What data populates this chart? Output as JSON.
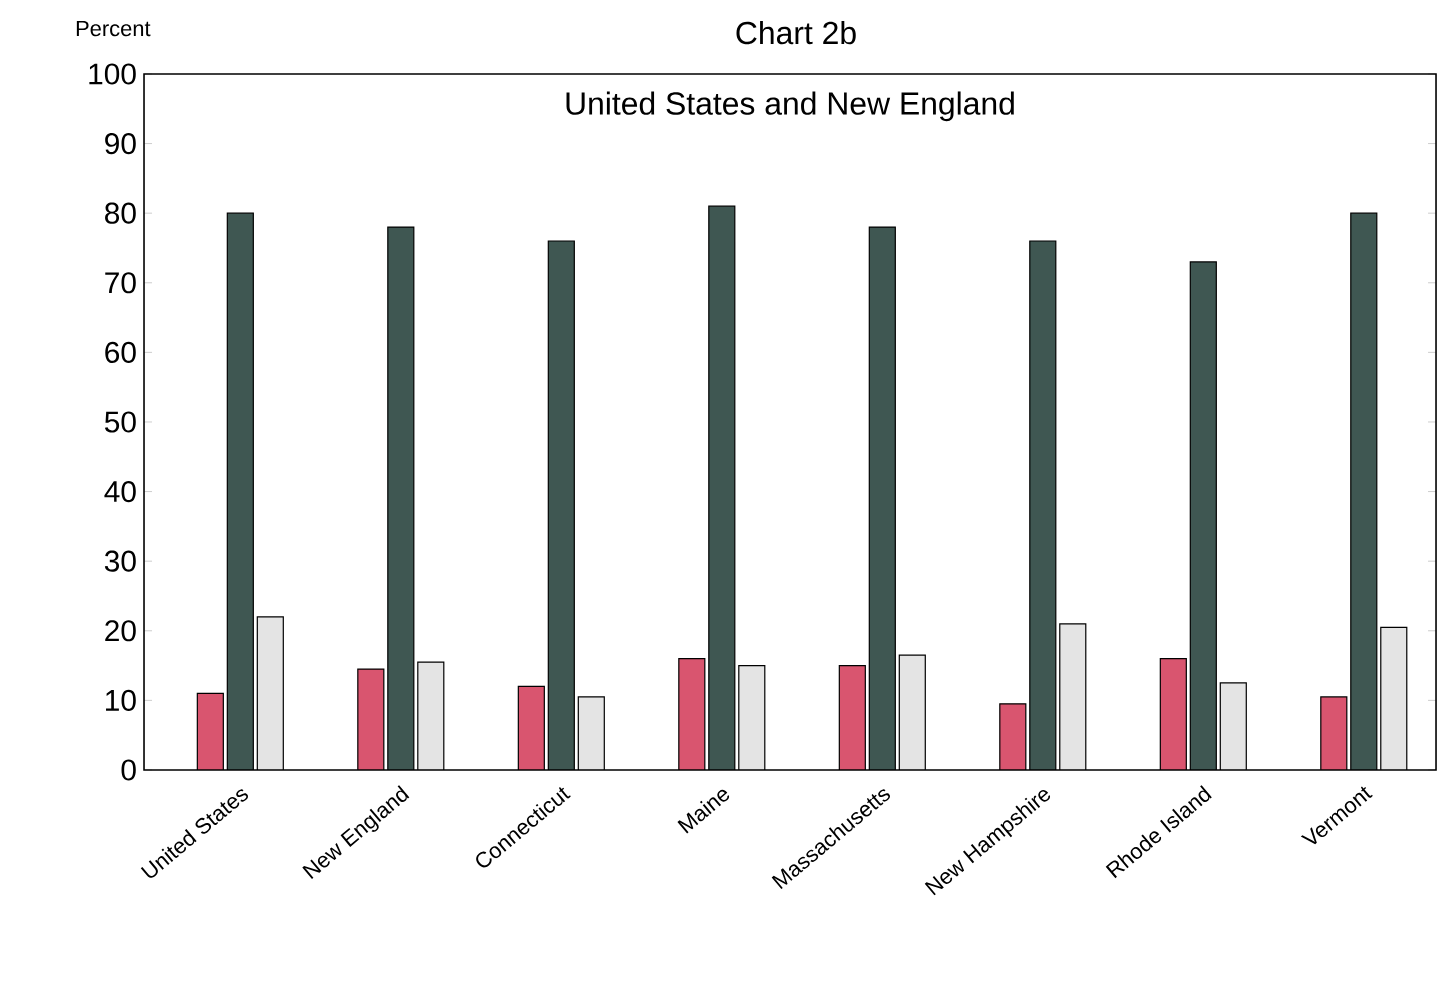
{
  "chart_data": {
    "type": "bar",
    "title": "Chart 2b",
    "subtitle": "United States and New England",
    "ylabel": "Percent",
    "categories": [
      "United States",
      "New England",
      "Connecticut",
      "Maine",
      "Massachusetts",
      "New Hampshire",
      "Rhode Island",
      "Vermont"
    ],
    "series": [
      {
        "color": "#d9556f",
        "values": [
          11,
          14.5,
          12,
          16,
          15,
          9.5,
          16,
          10.5
        ]
      },
      {
        "color": "#3f5752",
        "values": [
          80,
          78,
          76,
          81,
          78,
          76,
          73,
          80
        ]
      },
      {
        "color": "#e4e4e4",
        "values": [
          22,
          15.5,
          10.5,
          15,
          16.5,
          21,
          12.5,
          20.5
        ]
      }
    ],
    "ylim": [
      0,
      100
    ],
    "yticks": [
      0,
      10,
      20,
      30,
      40,
      50,
      60,
      70,
      80,
      90,
      100
    ],
    "grid": false
  }
}
